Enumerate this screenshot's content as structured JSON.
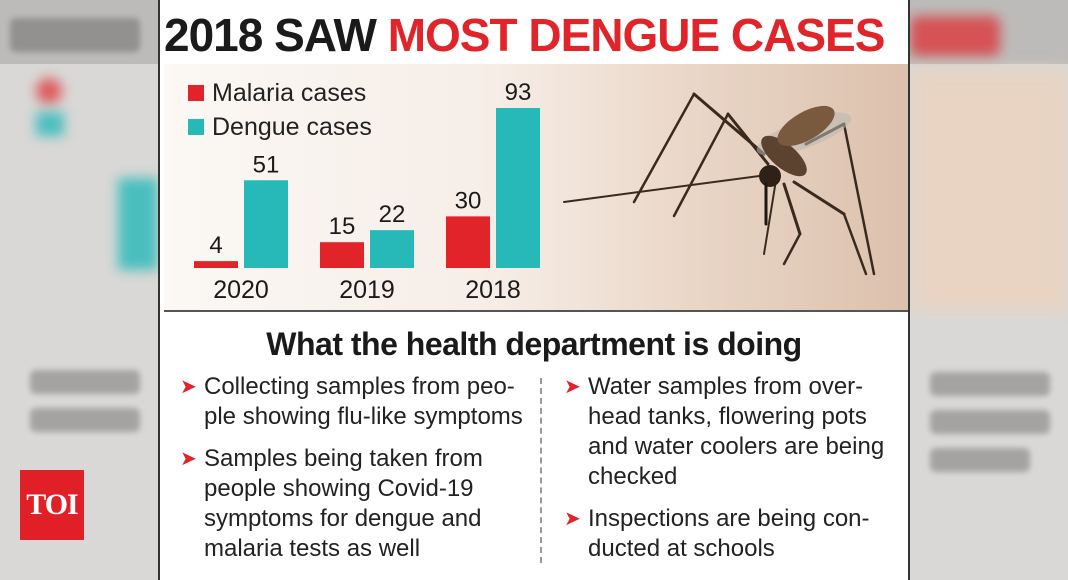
{
  "headline": {
    "part1": "2018 SAW",
    "part2": "MOST DENGUE CASES"
  },
  "colors": {
    "malaria": "#e1232a",
    "dengue": "#27b8b8",
    "accent": "#e1232a"
  },
  "chart_data": {
    "type": "bar",
    "categories": [
      "2020",
      "2019",
      "2018"
    ],
    "series": [
      {
        "name": "Malaria cases",
        "values": [
          4,
          15,
          30
        ]
      },
      {
        "name": "Dengue cases",
        "values": [
          51,
          22,
          93
        ]
      }
    ],
    "title": "2018 SAW MOST DENGUE CASES",
    "legend_position": "top-left",
    "grid": false
  },
  "section": {
    "title": "What the health department is doing",
    "left_bullets": [
      "Collecting samples from peo-ple showing flu-like symptoms",
      "Samples being taken from people showing Covid-19 symptoms for dengue and malaria tests as well"
    ],
    "right_bullets": [
      "Water samples from over-head tanks, flowering pots and water coolers are being checked",
      "Inspections are being con-ducted at schools"
    ]
  },
  "icons": {
    "bullet": "red-arrow-icon",
    "illustration": "mosquito-icon"
  },
  "logo": {
    "text": "TOI"
  }
}
